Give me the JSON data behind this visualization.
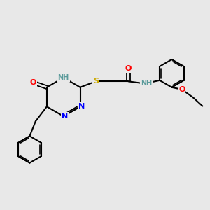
{
  "bg_color": "#e8e8e8",
  "atom_colors": {
    "C": "#000000",
    "N": "#0000ff",
    "O": "#ff0000",
    "S": "#ccaa00",
    "H": "#5a9a9a"
  },
  "bond_color": "#000000",
  "font_size": 8.0,
  "fig_size": [
    3.0,
    3.0
  ],
  "dpi": 100
}
